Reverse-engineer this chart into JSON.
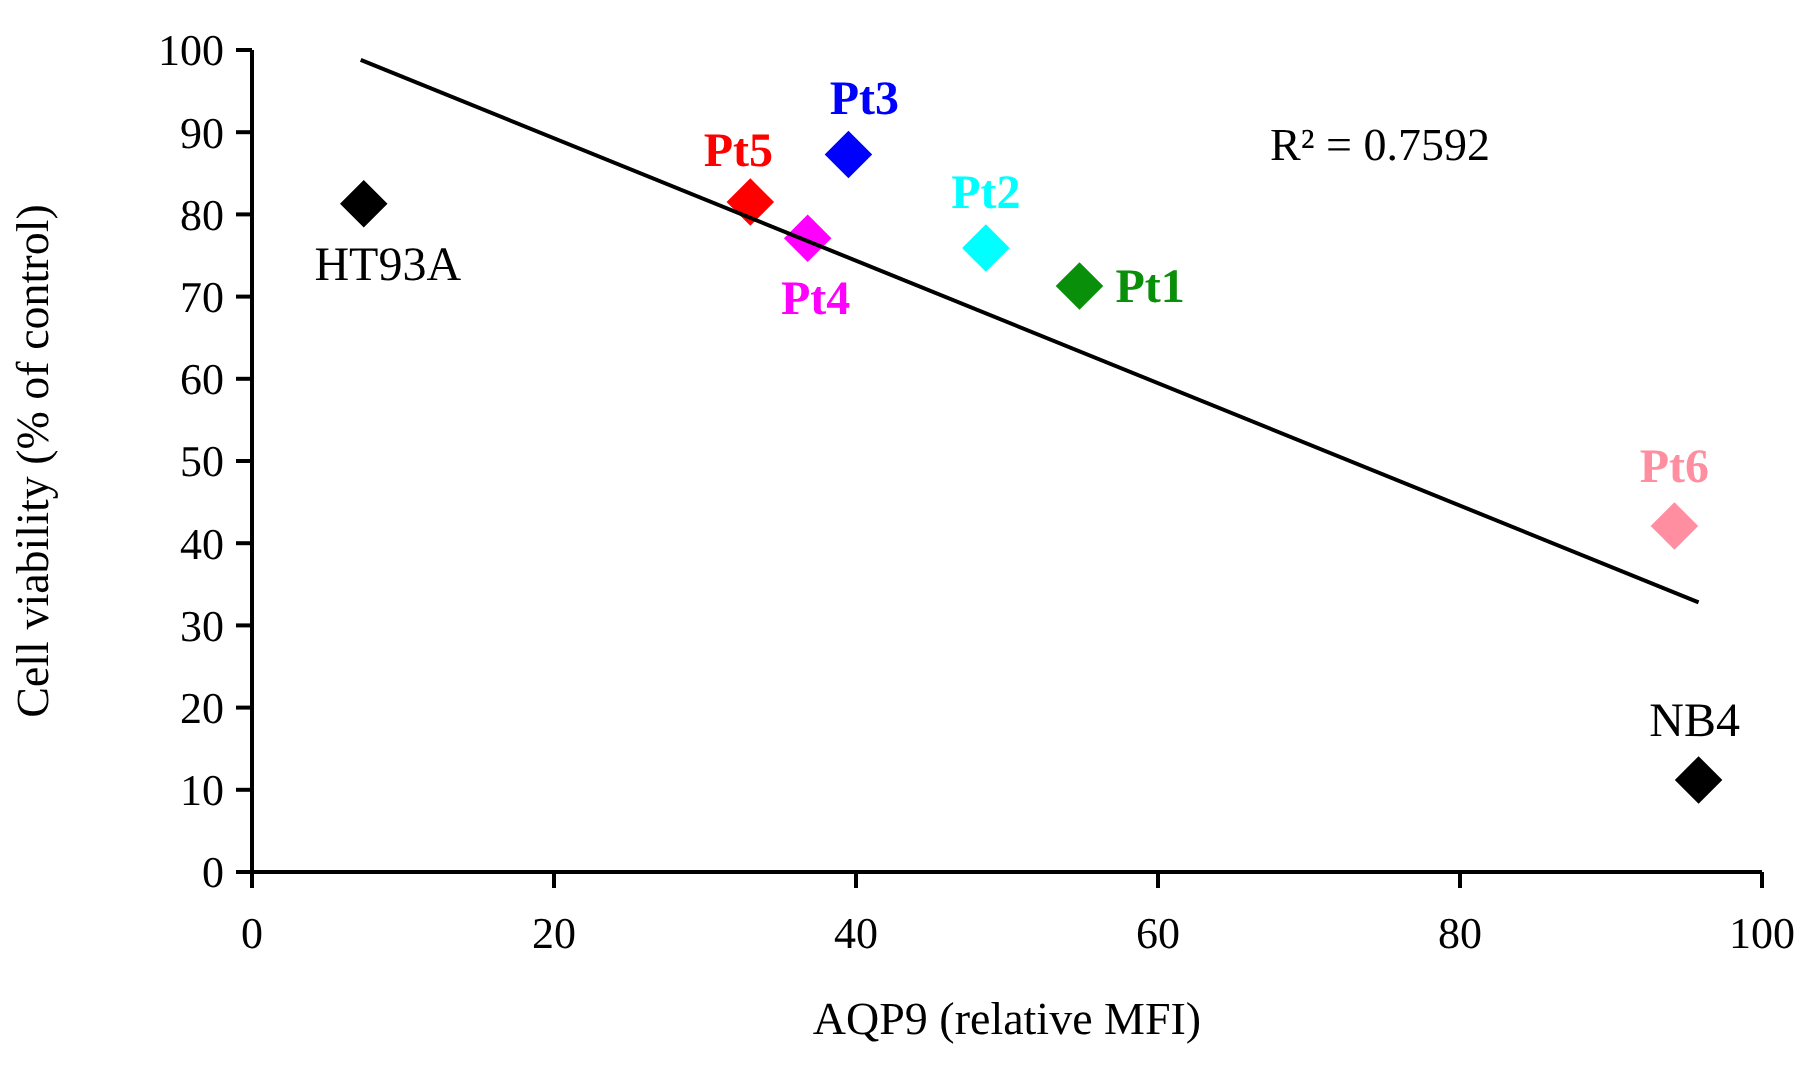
{
  "chart_data": {
    "type": "scatter",
    "xlabel": "AQP9 (relative MFI)",
    "ylabel": "Cell viability (% of control)",
    "xlim": [
      0,
      100
    ],
    "xticks": [
      0,
      20,
      40,
      60,
      80,
      100
    ],
    "ylim": [
      0,
      100
    ],
    "yticks": [
      0,
      10,
      20,
      30,
      40,
      50,
      60,
      70,
      80,
      90,
      100
    ],
    "grid": false,
    "marker": "diamond",
    "annotations": [
      "R² = 0.7592"
    ],
    "series": [
      {
        "name": "HT93A",
        "color": "#000000",
        "x": [
          7.4
        ],
        "values": [
          81.3
        ]
      },
      {
        "name": "Pt5",
        "color": "#ff0000",
        "x": [
          33.0
        ],
        "values": [
          81.5
        ]
      },
      {
        "name": "Pt3",
        "color": "#0000ff",
        "x": [
          39.5
        ],
        "values": [
          87.3
        ]
      },
      {
        "name": "Pt4",
        "color": "#ff00ff",
        "x": [
          36.8
        ],
        "values": [
          77.1
        ]
      },
      {
        "name": "Pt2",
        "color": "#00ffff",
        "x": [
          48.6
        ],
        "values": [
          75.9
        ]
      },
      {
        "name": "Pt1",
        "color": "#0a8f0a",
        "x": [
          54.8
        ],
        "values": [
          71.3
        ]
      },
      {
        "name": "Pt6",
        "color": "#ff8fa0",
        "x": [
          94.2
        ],
        "values": [
          42.1
        ]
      },
      {
        "name": "NB4",
        "color": "#000000",
        "x": [
          95.8
        ],
        "values": [
          11.2
        ]
      },
      {
        "type": "line",
        "color": "#000000",
        "marker": "none",
        "line_style": "solid",
        "x": [
          7.2,
          95.8
        ],
        "values": [
          98.8,
          32.8
        ]
      }
    ]
  }
}
